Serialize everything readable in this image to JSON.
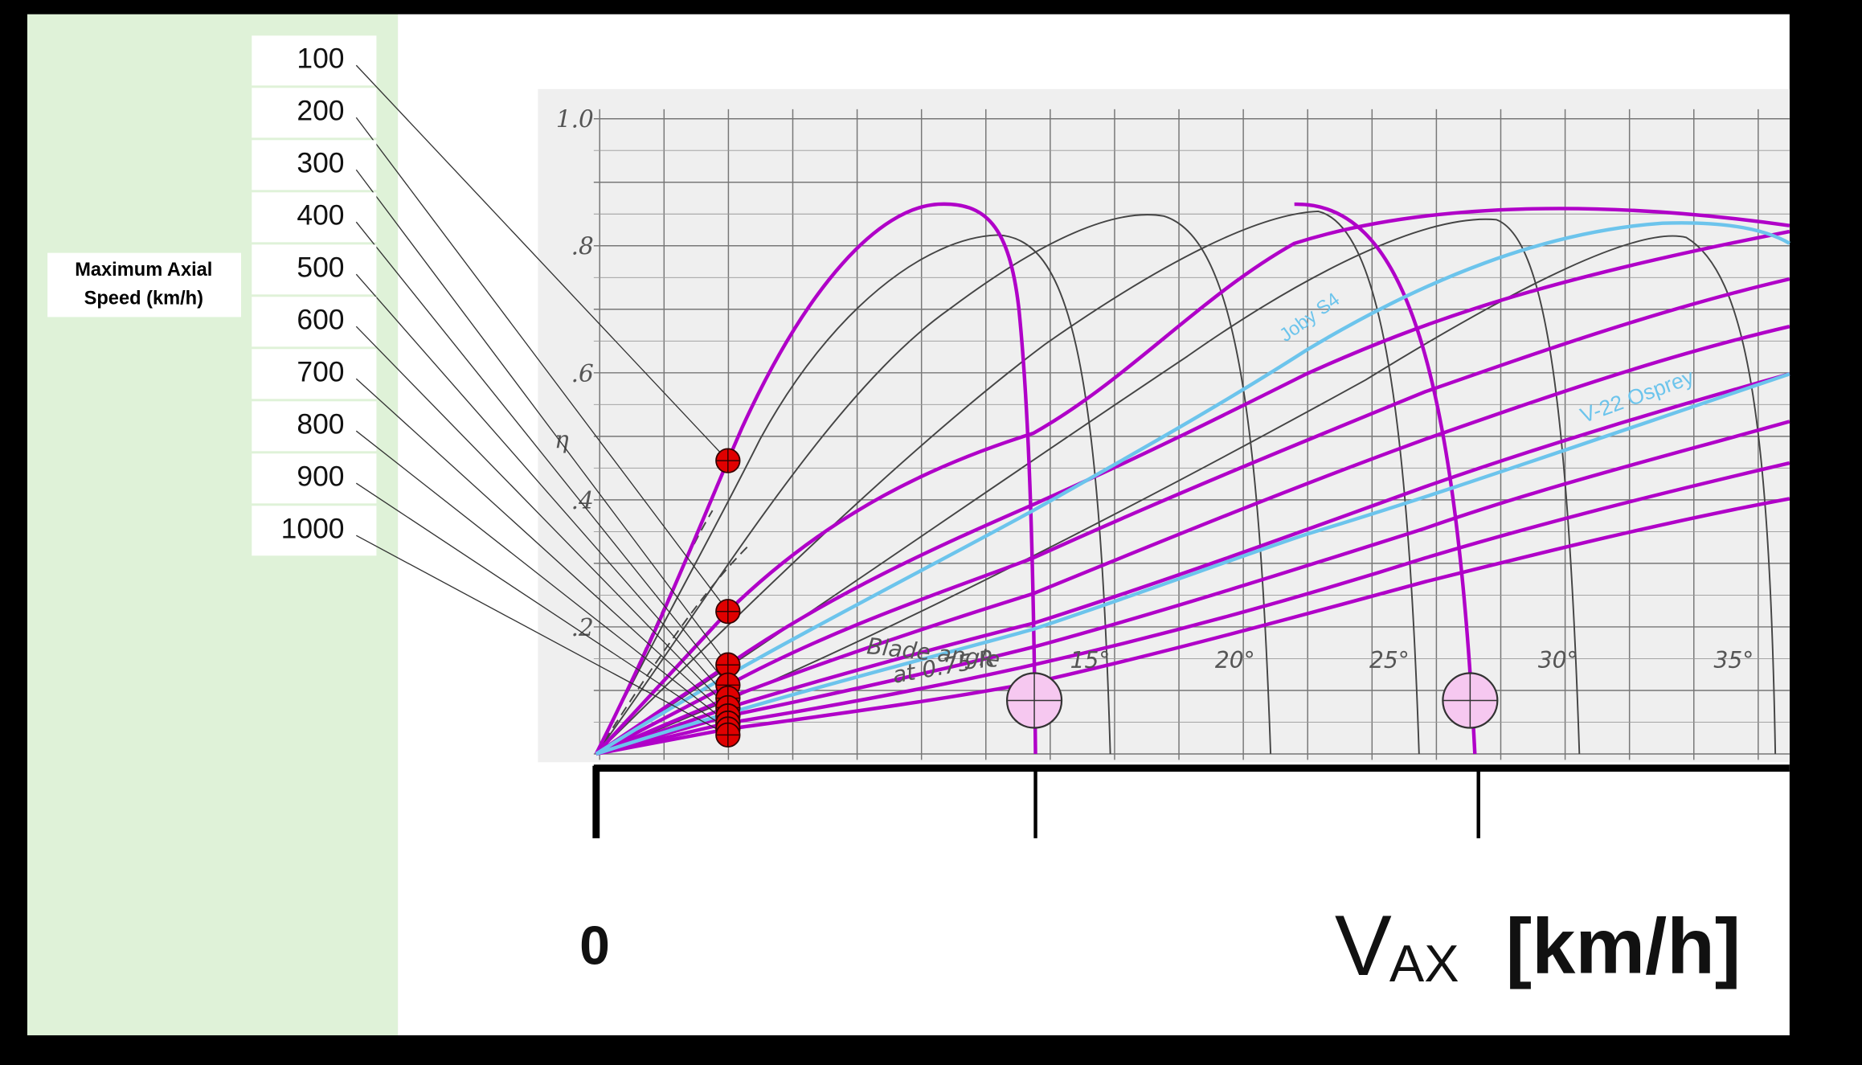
{
  "panel": {
    "title_lines": [
      "Maximum Axial",
      "Speed (km/h)"
    ],
    "speeds": [
      100,
      200,
      300,
      400,
      500,
      600,
      700,
      800,
      900,
      1000
    ]
  },
  "chart": {
    "y_labels": [
      "1.0",
      ".8",
      ".6",
      ".4",
      ".2"
    ],
    "y_symbol": "η",
    "angle_labels": [
      "15°",
      "20°",
      "25°",
      "30°",
      "35°"
    ],
    "blade_note": [
      "Blade angle",
      "at 0.75 R"
    ],
    "curve_labels": [
      "Joby S4",
      "V-22 Osprey"
    ]
  },
  "x_axis": {
    "origin_label": "0",
    "variable": "V",
    "subscript": "AX",
    "unit": "[km/h]"
  }
}
